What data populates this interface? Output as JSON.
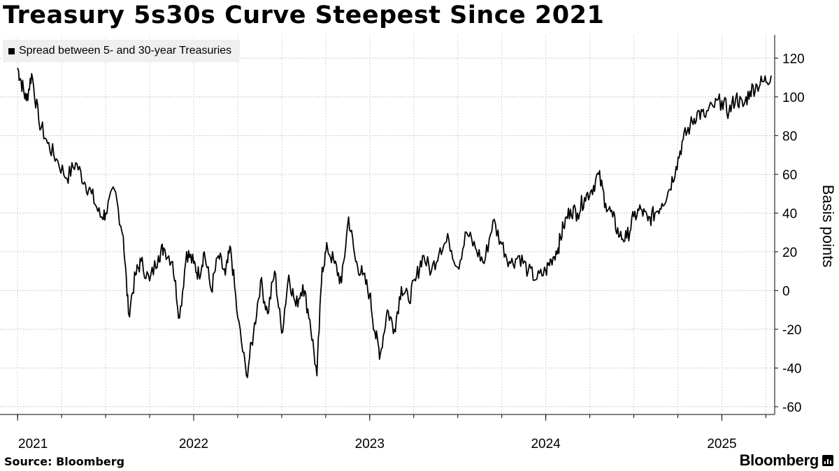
{
  "chart_data": {
    "type": "line",
    "title": "Treasury 5s30s Curve Steepest Since 2021",
    "series": [
      {
        "name": "Spread between 5- and 30-year Treasuries",
        "x": [
          2021.0,
          2021.02,
          2021.05,
          2021.08,
          2021.12,
          2021.17,
          2021.22,
          2021.28,
          2021.33,
          2021.38,
          2021.42,
          2021.47,
          2021.5,
          2021.55,
          2021.6,
          2021.63,
          2021.67,
          2021.7,
          2021.75,
          2021.8,
          2021.83,
          2021.88,
          2021.92,
          2021.96,
          2022.0,
          2022.03,
          2022.06,
          2022.1,
          2022.14,
          2022.18,
          2022.21,
          2022.25,
          2022.3,
          2022.34,
          2022.38,
          2022.42,
          2022.46,
          2022.5,
          2022.54,
          2022.58,
          2022.62,
          2022.66,
          2022.7,
          2022.73,
          2022.76,
          2022.8,
          2022.84,
          2022.88,
          2022.92,
          2022.96,
          2023.0,
          2023.03,
          2023.06,
          2023.1,
          2023.14,
          2023.18,
          2023.22,
          2023.26,
          2023.3,
          2023.35,
          2023.4,
          2023.45,
          2023.5,
          2023.55,
          2023.6,
          2023.65,
          2023.7,
          2023.75,
          2023.8,
          2023.85,
          2023.9,
          2023.95,
          2024.0,
          2024.03,
          2024.07,
          2024.1,
          2024.14,
          2024.18,
          2024.22,
          2024.26,
          2024.3,
          2024.34,
          2024.38,
          2024.42,
          2024.46,
          2024.5,
          2024.54,
          2024.58,
          2024.62,
          2024.66,
          2024.7,
          2024.74,
          2024.78,
          2024.82,
          2024.86,
          2024.9,
          2024.95,
          2025.0,
          2025.04,
          2025.08,
          2025.12,
          2025.16,
          2025.2,
          2025.24,
          2025.28
        ],
        "values": [
          115,
          108,
          98,
          112,
          88,
          76,
          68,
          58,
          66,
          56,
          50,
          38,
          40,
          52,
          28,
          -12,
          8,
          15,
          5,
          18,
          22,
          15,
          -14,
          20,
          14,
          8,
          20,
          0,
          18,
          8,
          22,
          -14,
          -44,
          -22,
          5,
          -12,
          10,
          -22,
          8,
          -8,
          3,
          -15,
          -44,
          12,
          22,
          14,
          4,
          38,
          15,
          8,
          -2,
          -22,
          -33,
          -10,
          -20,
          2,
          -5,
          5,
          18,
          10,
          22,
          26,
          12,
          30,
          22,
          14,
          36,
          24,
          14,
          18,
          10,
          6,
          10,
          16,
          22,
          33,
          42,
          40,
          48,
          52,
          60,
          45,
          38,
          28,
          27,
          38,
          42,
          36,
          40,
          45,
          52,
          64,
          78,
          85,
          92,
          90,
          95,
          98,
          92,
          100,
          95,
          103,
          106,
          108,
          111
        ]
      }
    ],
    "xticks": [
      2021,
      2022,
      2023,
      2024,
      2025
    ],
    "xlim": [
      2020.9,
      2025.3
    ],
    "ylim": [
      -64,
      132
    ],
    "yticks": [
      -60,
      -40,
      -20,
      0,
      20,
      40,
      60,
      80,
      100,
      120
    ],
    "ylabel": "Basis points",
    "xlabel": "",
    "grid": true,
    "legend": "top-left",
    "line_color": "#000000"
  },
  "footer": {
    "source": "Source: Bloomberg",
    "brand": "Bloomberg"
  }
}
